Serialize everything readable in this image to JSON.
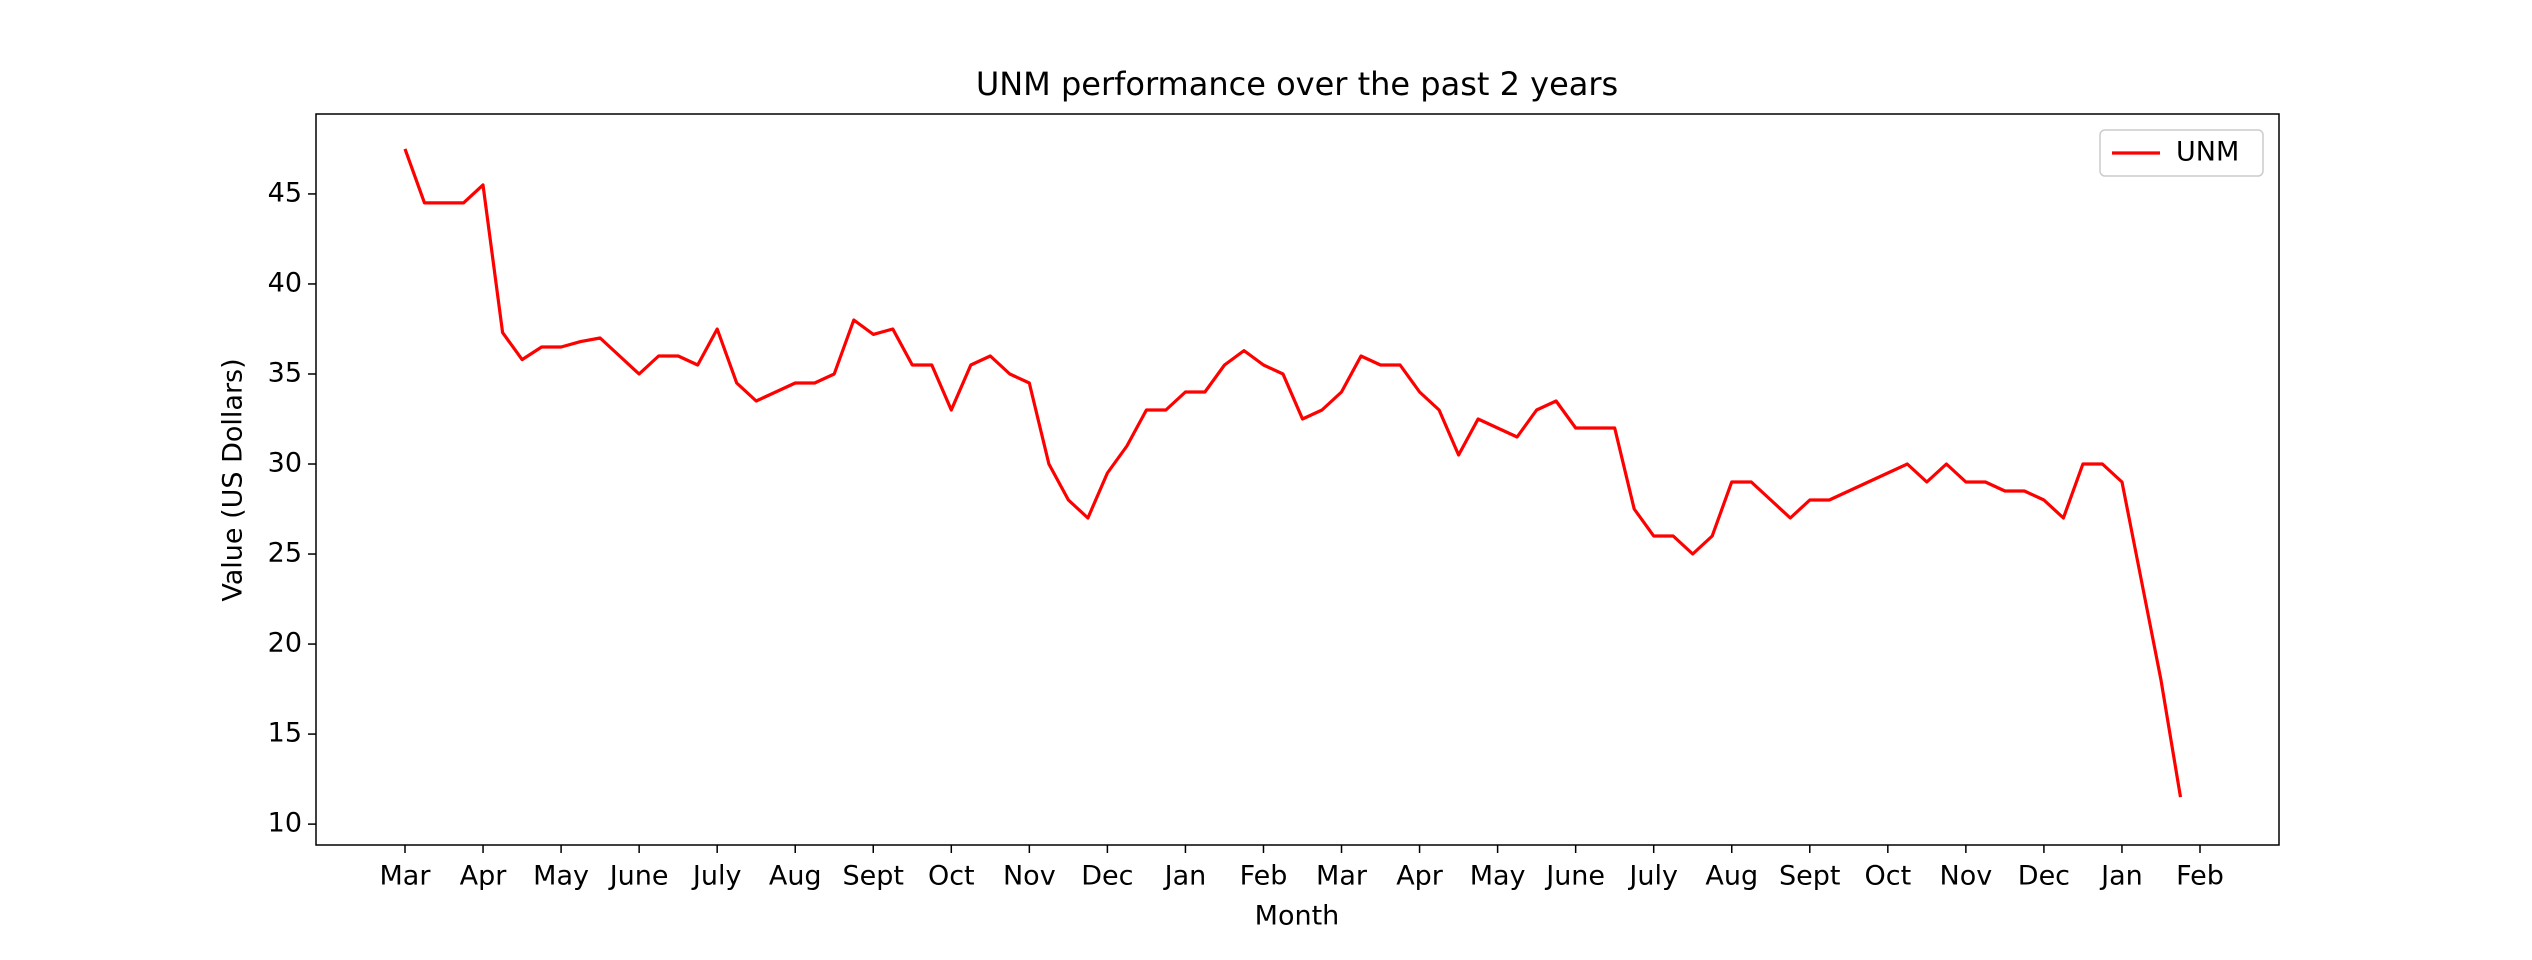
{
  "chart_data": {
    "type": "line",
    "title": "UNM performance over the past 2 years",
    "x_label": "Month",
    "y_label": "Value (US Dollars)",
    "categories": [
      "Mar",
      null,
      null,
      null,
      "Apr",
      null,
      null,
      null,
      "May",
      null,
      null,
      null,
      "June",
      null,
      null,
      null,
      "July",
      null,
      null,
      null,
      "Aug",
      null,
      null,
      null,
      "Sept",
      null,
      null,
      null,
      "Oct",
      null,
      null,
      null,
      "Nov",
      null,
      null,
      null,
      "Dec",
      null,
      null,
      null,
      "Jan",
      null,
      null,
      null,
      "Feb",
      null,
      null,
      null,
      "Mar",
      null,
      null,
      null,
      "Apr",
      null,
      null,
      null,
      "May",
      null,
      null,
      null,
      "June",
      null,
      null,
      null,
      "July",
      null,
      null,
      null,
      "Aug",
      null,
      null,
      null,
      "Sept",
      null,
      null,
      null,
      "Oct",
      null,
      null,
      null,
      "Nov",
      null,
      null,
      null,
      "Dec",
      null,
      null,
      null,
      "Jan",
      null,
      null,
      null,
      "Feb"
    ],
    "series": [
      {
        "name": "UNM",
        "color": "#ff0000",
        "values": [
          47.5,
          44.5,
          44.5,
          44.5,
          45.5,
          37.3,
          35.8,
          36.5,
          36.5,
          36.8,
          37,
          36,
          35,
          36,
          36,
          35.5,
          37.5,
          34.5,
          33.5,
          34,
          34.5,
          34.5,
          35,
          38,
          37.2,
          37.5,
          35.5,
          35.5,
          33,
          35.5,
          36,
          35,
          34.5,
          30,
          28,
          27,
          29.5,
          31,
          33,
          33,
          34,
          34,
          35.5,
          36.3,
          35.5,
          35,
          32.5,
          33,
          34,
          36,
          35.5,
          35.5,
          34,
          33,
          30.5,
          32.5,
          32,
          31.5,
          33,
          33.5,
          32,
          32,
          32,
          27.5,
          26,
          26,
          25,
          26,
          29,
          29,
          28,
          27,
          28,
          28,
          28.5,
          29,
          29.5,
          30,
          29,
          30,
          29,
          29,
          28.5,
          28.5,
          28,
          27,
          30,
          30,
          29,
          23.5,
          18,
          11.5,
          null
        ]
      }
    ],
    "ylim": [
      8.84,
      49.44
    ],
    "yticks": [
      10,
      15,
      20,
      25,
      30,
      35,
      40,
      45
    ],
    "grid": false,
    "legend": "upper right"
  }
}
